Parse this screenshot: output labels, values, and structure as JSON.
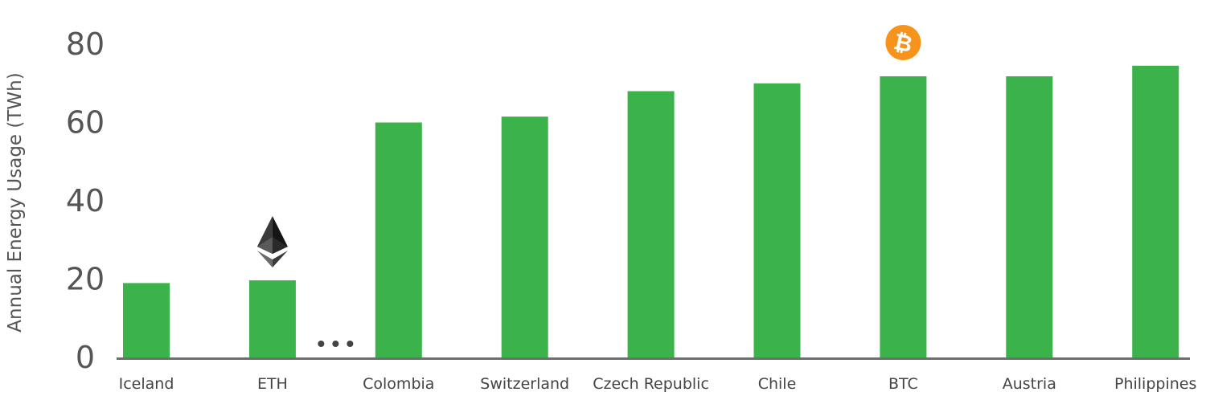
{
  "chart_data": {
    "type": "bar",
    "title": "",
    "xlabel": "",
    "ylabel": "Annual Energy Usage (TWh)",
    "ylim": [
      0,
      80
    ],
    "yticks": [
      0,
      20,
      40,
      60,
      80
    ],
    "grid": false,
    "legend": "none",
    "categories": [
      "Iceland",
      "ETH",
      "Colombia",
      "Switzerland",
      "Czech Republic",
      "Chile",
      "BTC",
      "Austria",
      "Philippines"
    ],
    "values": [
      19.0,
      19.7,
      60.0,
      61.5,
      68.0,
      70.0,
      71.8,
      71.8,
      74.5
    ],
    "bar_color": "#3cb34a",
    "axis_color": "#6e6e6e",
    "annotations": [
      {
        "category": "ETH",
        "icon": "ethereum-icon",
        "color": "#2b2b2b"
      },
      {
        "category": "BTC",
        "icon": "bitcoin-icon",
        "color": "#f7931a",
        "glyph": "₿"
      }
    ],
    "gap_marker": {
      "after_category": "ETH",
      "text": "..."
    }
  }
}
